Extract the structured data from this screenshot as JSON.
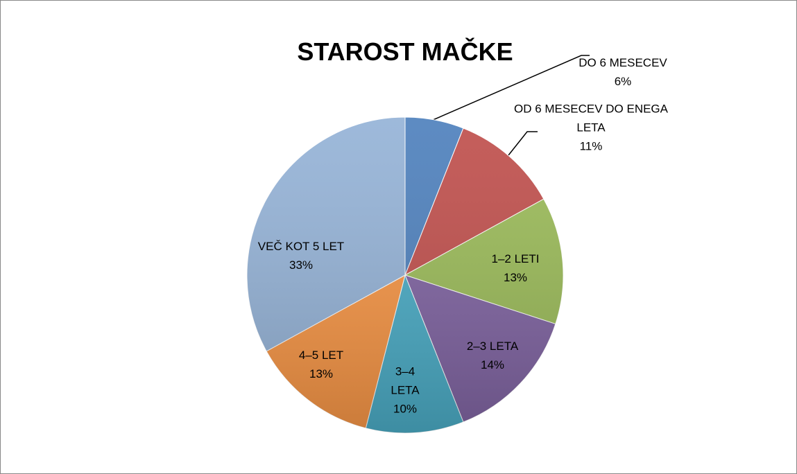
{
  "chart_data": {
    "type": "pie",
    "title": "STAROST MAČKE",
    "categories": [
      "DO 6 MESECEV",
      "OD 6 MESECEV DO ENEGA LETA",
      "1–2 LETI",
      "2–3 LETA",
      "3–4 LETA",
      "4–5 LET",
      "VEČ KOT 5 LET"
    ],
    "values": [
      6,
      11,
      13,
      14,
      10,
      13,
      33
    ],
    "value_labels": [
      "6%",
      "11%",
      "13%",
      "14%",
      "10%",
      "13%",
      "33%"
    ],
    "colors": [
      "#4f81bd",
      "#c0504d",
      "#9bbb59",
      "#8064a2",
      "#4bacc6",
      "#f79646",
      "#95b3d7"
    ]
  }
}
